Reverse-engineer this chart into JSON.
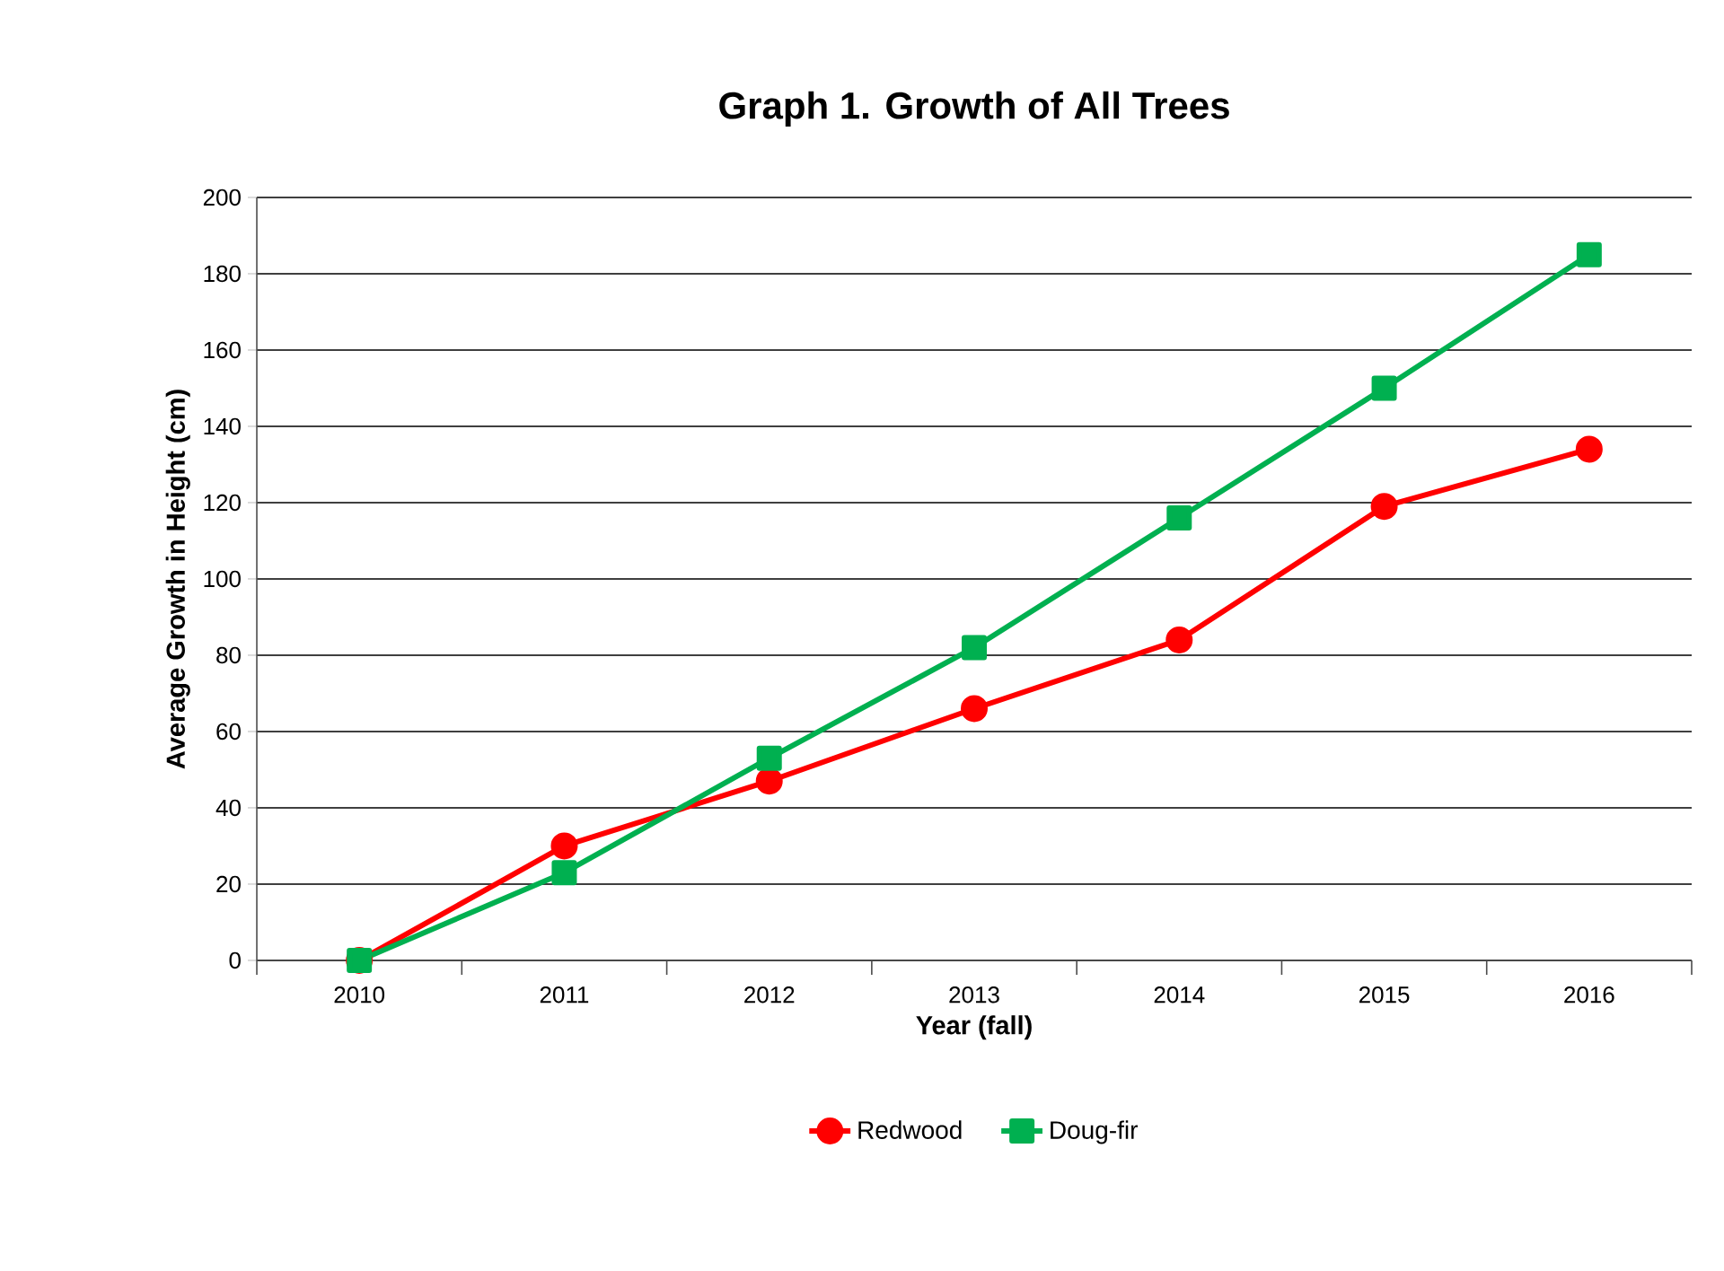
{
  "chart_data": {
    "type": "line",
    "title": "Graph 1.  Growth of All Trees",
    "xlabel": "Year (fall)",
    "ylabel": "Average Growth in Height (cm)",
    "categories": [
      "2010",
      "2011",
      "2012",
      "2013",
      "2014",
      "2015",
      "2016"
    ],
    "series": [
      {
        "name": "Redwood",
        "color": "#ff0000",
        "marker": "circle",
        "values": [
          0,
          30,
          47,
          66,
          84,
          119,
          134
        ]
      },
      {
        "name": "Doug-fir",
        "color": "#00b050",
        "marker": "square",
        "values": [
          0,
          23,
          53,
          82,
          116,
          150,
          185
        ]
      }
    ],
    "ylim": [
      0,
      200
    ],
    "yticks": [
      0,
      20,
      40,
      60,
      80,
      100,
      120,
      140,
      160,
      180,
      200
    ],
    "grid": "y",
    "legend": "bottom",
    "line_style": "solid"
  }
}
